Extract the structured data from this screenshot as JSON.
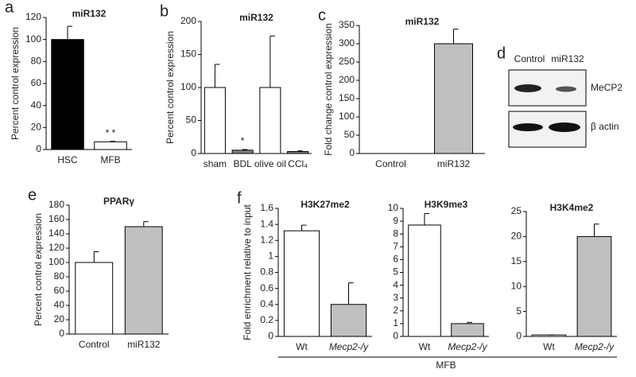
{
  "chart_data": [
    {
      "type": "bar",
      "panel": "a",
      "title": "miR132",
      "ylabel": "Percent control expression",
      "categories": [
        "HSC",
        "MFB"
      ],
      "values": [
        100,
        7
      ],
      "errors": [
        12,
        0.5
      ],
      "colors": [
        "#000000",
        "#ffffff"
      ],
      "ylim": [
        0,
        120
      ],
      "yticks": [
        0,
        20,
        40,
        60,
        80,
        100,
        120
      ],
      "annotations": [
        "* *"
      ]
    },
    {
      "type": "bar",
      "panel": "b",
      "title": "miR132",
      "ylabel": "Percent control expression",
      "categories": [
        "sham",
        "BDL",
        "olive oil",
        "CCl₄"
      ],
      "values": [
        100,
        5,
        100,
        3
      ],
      "errors": [
        35,
        1,
        78,
        1
      ],
      "colors": [
        "#ffffff",
        "#808080",
        "#ffffff",
        "#808080"
      ],
      "ylim": [
        0,
        200
      ],
      "yticks": [
        0,
        50,
        100,
        150,
        200
      ],
      "annotations": [
        "*"
      ]
    },
    {
      "type": "bar",
      "panel": "c",
      "title": "miR132",
      "ylabel": "Fold change control expression",
      "categories": [
        "Control",
        "miR132"
      ],
      "values": [
        0,
        300
      ],
      "errors": [
        0,
        40
      ],
      "colors": [
        "#ffffff",
        "#c0c0c0"
      ],
      "ylim": [
        0,
        350
      ],
      "yticks": [
        0,
        50,
        100,
        150,
        200,
        250,
        300,
        350
      ]
    },
    {
      "type": "bar",
      "panel": "e",
      "title": "PPARγ",
      "ylabel": "Percent control expression",
      "categories": [
        "Control",
        "miR132"
      ],
      "values": [
        100,
        150
      ],
      "errors": [
        15,
        7
      ],
      "colors": [
        "#ffffff",
        "#c0c0c0"
      ],
      "ylim": [
        0,
        180
      ],
      "yticks": [
        0,
        20,
        40,
        60,
        80,
        100,
        120,
        140,
        160,
        180
      ]
    },
    {
      "type": "bar",
      "panel": "f",
      "title": "H3K27me2",
      "ylabel": "Fold enrichment relative to input",
      "categories": [
        "Wt",
        "Mecp2-/y"
      ],
      "values": [
        1.32,
        0.4
      ],
      "errors": [
        0.07,
        0.27
      ],
      "colors": [
        "#ffffff",
        "#c0c0c0"
      ],
      "ylim": [
        0,
        1.6
      ],
      "yticks": [
        0,
        0.2,
        0.4,
        0.6,
        0.8,
        1,
        1.2,
        1.4,
        1.6
      ]
    },
    {
      "type": "bar",
      "title": "H3K9me3",
      "xlabel": "MFB",
      "categories": [
        "Wt",
        "Mecp2-/y"
      ],
      "values": [
        8.7,
        1.0
      ],
      "errors": [
        0.9,
        0.1
      ],
      "colors": [
        "#ffffff",
        "#c0c0c0"
      ],
      "ylim": [
        0,
        10
      ],
      "yticks": [
        0,
        1,
        2,
        3,
        4,
        5,
        6,
        7,
        8,
        9,
        10
      ]
    },
    {
      "type": "bar",
      "title": "H3K4me2",
      "categories": [
        "Wt",
        "Mecp2-/y"
      ],
      "values": [
        0.3,
        20
      ],
      "errors": [
        0,
        2.5
      ],
      "colors": [
        "#ffffff",
        "#c0c0c0"
      ],
      "ylim": [
        0,
        25
      ],
      "yticks": [
        0,
        5,
        10,
        15,
        20,
        25
      ]
    }
  ],
  "blot": {
    "panel": "d",
    "lanes": [
      "Control",
      "miR132"
    ],
    "bands": [
      "MeCP2",
      "β actin"
    ]
  }
}
